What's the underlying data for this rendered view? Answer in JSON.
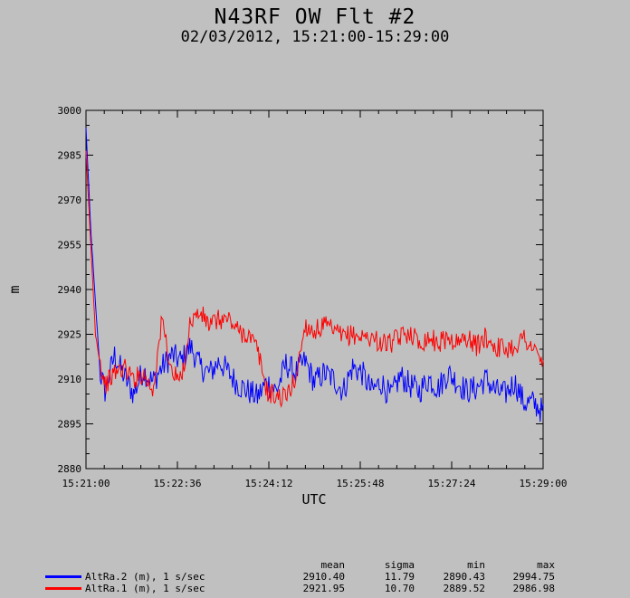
{
  "chart_data": {
    "type": "line",
    "title": "N43RF OW Flt #2",
    "subtitle": "02/03/2012, 15:21:00-15:29:00",
    "xlabel": "UTC",
    "ylabel": "m",
    "ylim": [
      2880,
      3000
    ],
    "xlim": [
      "15:21:00",
      "15:29:00"
    ],
    "yticks": [
      "3000",
      "2985",
      "2970",
      "2955",
      "2940",
      "2925",
      "2910",
      "2895",
      "2880"
    ],
    "xticks": [
      "15:21:00",
      "15:22:36",
      "15:24:12",
      "15:25:48",
      "15:27:24",
      "15:29:00"
    ],
    "grid": false,
    "series": [
      {
        "name": "AltRa.2 (m), 1 s/sec",
        "color": "#0000ff",
        "x_seconds_from_start_sampled": [
          0,
          5,
          10,
          15,
          20,
          30,
          40,
          50,
          60,
          70,
          80,
          90,
          100,
          110,
          120,
          130,
          140,
          150,
          160,
          170,
          180,
          190,
          200,
          210,
          220,
          230,
          240,
          250,
          260,
          270,
          280,
          290,
          300,
          310,
          320,
          330,
          340,
          350,
          360,
          370,
          380,
          390,
          400,
          410,
          420,
          430,
          440,
          450,
          460,
          470,
          480
        ],
        "values": [
          2994,
          2960,
          2935,
          2912,
          2906,
          2918,
          2911,
          2905,
          2913,
          2909,
          2914,
          2918,
          2916,
          2921,
          2914,
          2912,
          2916,
          2912,
          2908,
          2906,
          2904,
          2909,
          2906,
          2915,
          2912,
          2916,
          2909,
          2912,
          2910,
          2906,
          2914,
          2912,
          2906,
          2909,
          2904,
          2911,
          2908,
          2906,
          2910,
          2907,
          2912,
          2909,
          2906,
          2907,
          2910,
          2906,
          2905,
          2909,
          2902,
          2902,
          2899
        ]
      },
      {
        "name": "AltRa.1 (m), 1 s/sec",
        "color": "#ff0000",
        "x_seconds_from_start_sampled": [
          0,
          5,
          10,
          15,
          20,
          30,
          40,
          50,
          60,
          70,
          80,
          90,
          100,
          110,
          120,
          130,
          140,
          150,
          160,
          170,
          180,
          190,
          200,
          210,
          220,
          230,
          240,
          250,
          260,
          270,
          280,
          290,
          300,
          310,
          320,
          330,
          340,
          350,
          360,
          370,
          380,
          390,
          400,
          410,
          420,
          430,
          440,
          450,
          460,
          470,
          480
        ],
        "values": [
          2986,
          2955,
          2925,
          2915,
          2908,
          2912,
          2914,
          2910,
          2912,
          2906,
          2930,
          2912,
          2909,
          2930,
          2932,
          2928,
          2930,
          2930,
          2926,
          2925,
          2920,
          2906,
          2904,
          2904,
          2910,
          2928,
          2926,
          2928,
          2926,
          2924,
          2925,
          2924,
          2924,
          2922,
          2922,
          2924,
          2926,
          2922,
          2924,
          2922,
          2924,
          2922,
          2924,
          2921,
          2924,
          2921,
          2920,
          2921,
          2924,
          2920,
          2915
        ]
      }
    ]
  },
  "legend": {
    "headers": {
      "mean": "mean",
      "sigma": "sigma",
      "min": "min",
      "max": "max"
    },
    "rows": [
      {
        "name": "AltRa.2 (m), 1 s/sec",
        "color": "#0000ff",
        "mean": "2910.40",
        "sigma": "11.79",
        "min": "2890.43",
        "max": "2994.75"
      },
      {
        "name": "AltRa.1 (m), 1 s/sec",
        "color": "#ff0000",
        "mean": "2921.95",
        "sigma": "10.70",
        "min": "2889.52",
        "max": "2986.98"
      }
    ]
  }
}
